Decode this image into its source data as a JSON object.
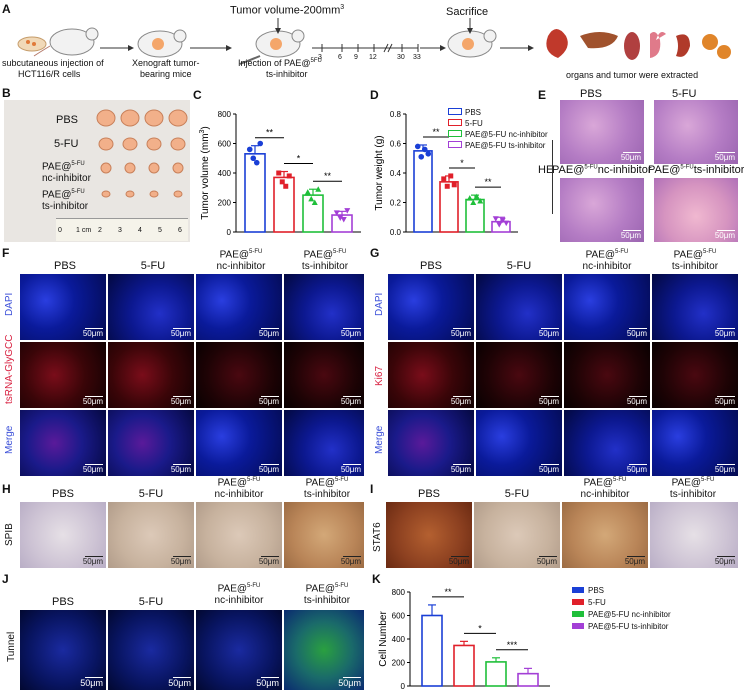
{
  "panels": {
    "A": "A",
    "B": "B",
    "C": "C",
    "D": "D",
    "E": "E",
    "F": "F",
    "G": "G",
    "H": "H",
    "I": "I",
    "J": "J",
    "K": "K"
  },
  "schematic": {
    "injection": "subcutaneous injection of",
    "cells": "HCT116/R cells",
    "xenograft": "Xenograft tumor-",
    "bearing": "bearing mice",
    "tumor_volume": "Tumor volume-200mm",
    "sup3": "3",
    "inj_pae": "Injection of PAE@",
    "sup5fu": "5FU",
    "ts_inh": "ts-inhibitor",
    "sacrifice": "Sacrifice",
    "days": [
      "3",
      "6",
      "9",
      "12",
      "30",
      "33"
    ],
    "organs": "organs and tumor were extracted"
  },
  "groups": {
    "pbs": "PBS",
    "fu": "5-FU",
    "pae": "PAE@",
    "sup": "5-FU",
    "nc": "nc-inhibitor",
    "ts": "ts-inhibitor"
  },
  "ruler": {
    "marks": [
      "0",
      "1 cm",
      "2",
      "3",
      "4",
      "5",
      "6"
    ]
  },
  "stains": {
    "he": "HE",
    "dapi": "DAPI",
    "tsrna": "tsRNA-GlyGCC",
    "merge": "Merge",
    "ki67": "Ki67",
    "spib": "SPIB",
    "stat6": "STAT6",
    "tunnel": "Tunnel"
  },
  "scalebar": "50μm",
  "scalebar_he": "50μm",
  "legend": {
    "pbs": "PBS",
    "fu": "5-FU",
    "nc": "PAE@5-FU nc-inhibitor",
    "ts": "PAE@5-FU ts-inhibitor"
  },
  "colors": {
    "pbs": "#1a3fd6",
    "fu": "#e0202a",
    "nc": "#1fbf3a",
    "ts": "#a33fd6"
  },
  "chart_data": [
    {
      "type": "bar",
      "panel": "C",
      "ylabel": "Tumor volume (mm",
      "ylabel_sup": "3",
      "ylabel_end": ")",
      "ylim": [
        0,
        800
      ],
      "yticks": [
        "0",
        "200",
        "400",
        "600",
        "800"
      ],
      "categories": [
        "PBS",
        "5-FU",
        "PAE@5-FU nc-inhibitor",
        "PAE@5-FU ts-inhibitor"
      ],
      "values": [
        530,
        370,
        250,
        115
      ],
      "errors": [
        55,
        40,
        40,
        25
      ],
      "points": [
        [
          560,
          500,
          470,
          600
        ],
        [
          400,
          340,
          310,
          380
        ],
        [
          270,
          225,
          200,
          290
        ],
        [
          130,
          95,
          85,
          145
        ]
      ],
      "significance": [
        {
          "from": 0,
          "to": 1,
          "label": "**"
        },
        {
          "from": 1,
          "to": 2,
          "label": "*"
        },
        {
          "from": 2,
          "to": 3,
          "label": "**"
        }
      ]
    },
    {
      "type": "bar",
      "panel": "D",
      "ylabel": "Tumor weight (g)",
      "ylim": [
        0,
        0.8
      ],
      "yticks": [
        "0.0",
        "0.2",
        "0.4",
        "0.6",
        "0.8"
      ],
      "categories": [
        "PBS",
        "5-FU",
        "PAE@5-FU nc-inhibitor",
        "PAE@5-FU ts-inhibitor"
      ],
      "values": [
        0.55,
        0.34,
        0.22,
        0.07
      ],
      "errors": [
        0.04,
        0.04,
        0.03,
        0.03
      ],
      "points": [
        [
          0.58,
          0.51,
          0.56,
          0.53
        ],
        [
          0.36,
          0.31,
          0.38,
          0.32
        ],
        [
          0.23,
          0.2,
          0.24,
          0.21
        ],
        [
          0.09,
          0.05,
          0.08,
          0.06
        ]
      ],
      "significance": [
        {
          "from": 0,
          "to": 1,
          "label": "**"
        },
        {
          "from": 1,
          "to": 2,
          "label": "*"
        },
        {
          "from": 2,
          "to": 3,
          "label": "**"
        }
      ]
    },
    {
      "type": "bar",
      "panel": "K",
      "ylabel": "Cell Number",
      "ylim": [
        0,
        800
      ],
      "yticks": [
        "0",
        "200",
        "400",
        "600",
        "800"
      ],
      "categories": [
        "PBS",
        "5-FU",
        "PAE@5-FU nc-inhibitor",
        "PAE@5-FU ts-inhibitor"
      ],
      "values": [
        600,
        345,
        205,
        105
      ],
      "errors": [
        90,
        35,
        35,
        45
      ],
      "significance": [
        {
          "from": 0,
          "to": 1,
          "label": "**"
        },
        {
          "from": 1,
          "to": 2,
          "label": "*"
        },
        {
          "from": 2,
          "to": 3,
          "label": "***"
        }
      ]
    }
  ]
}
